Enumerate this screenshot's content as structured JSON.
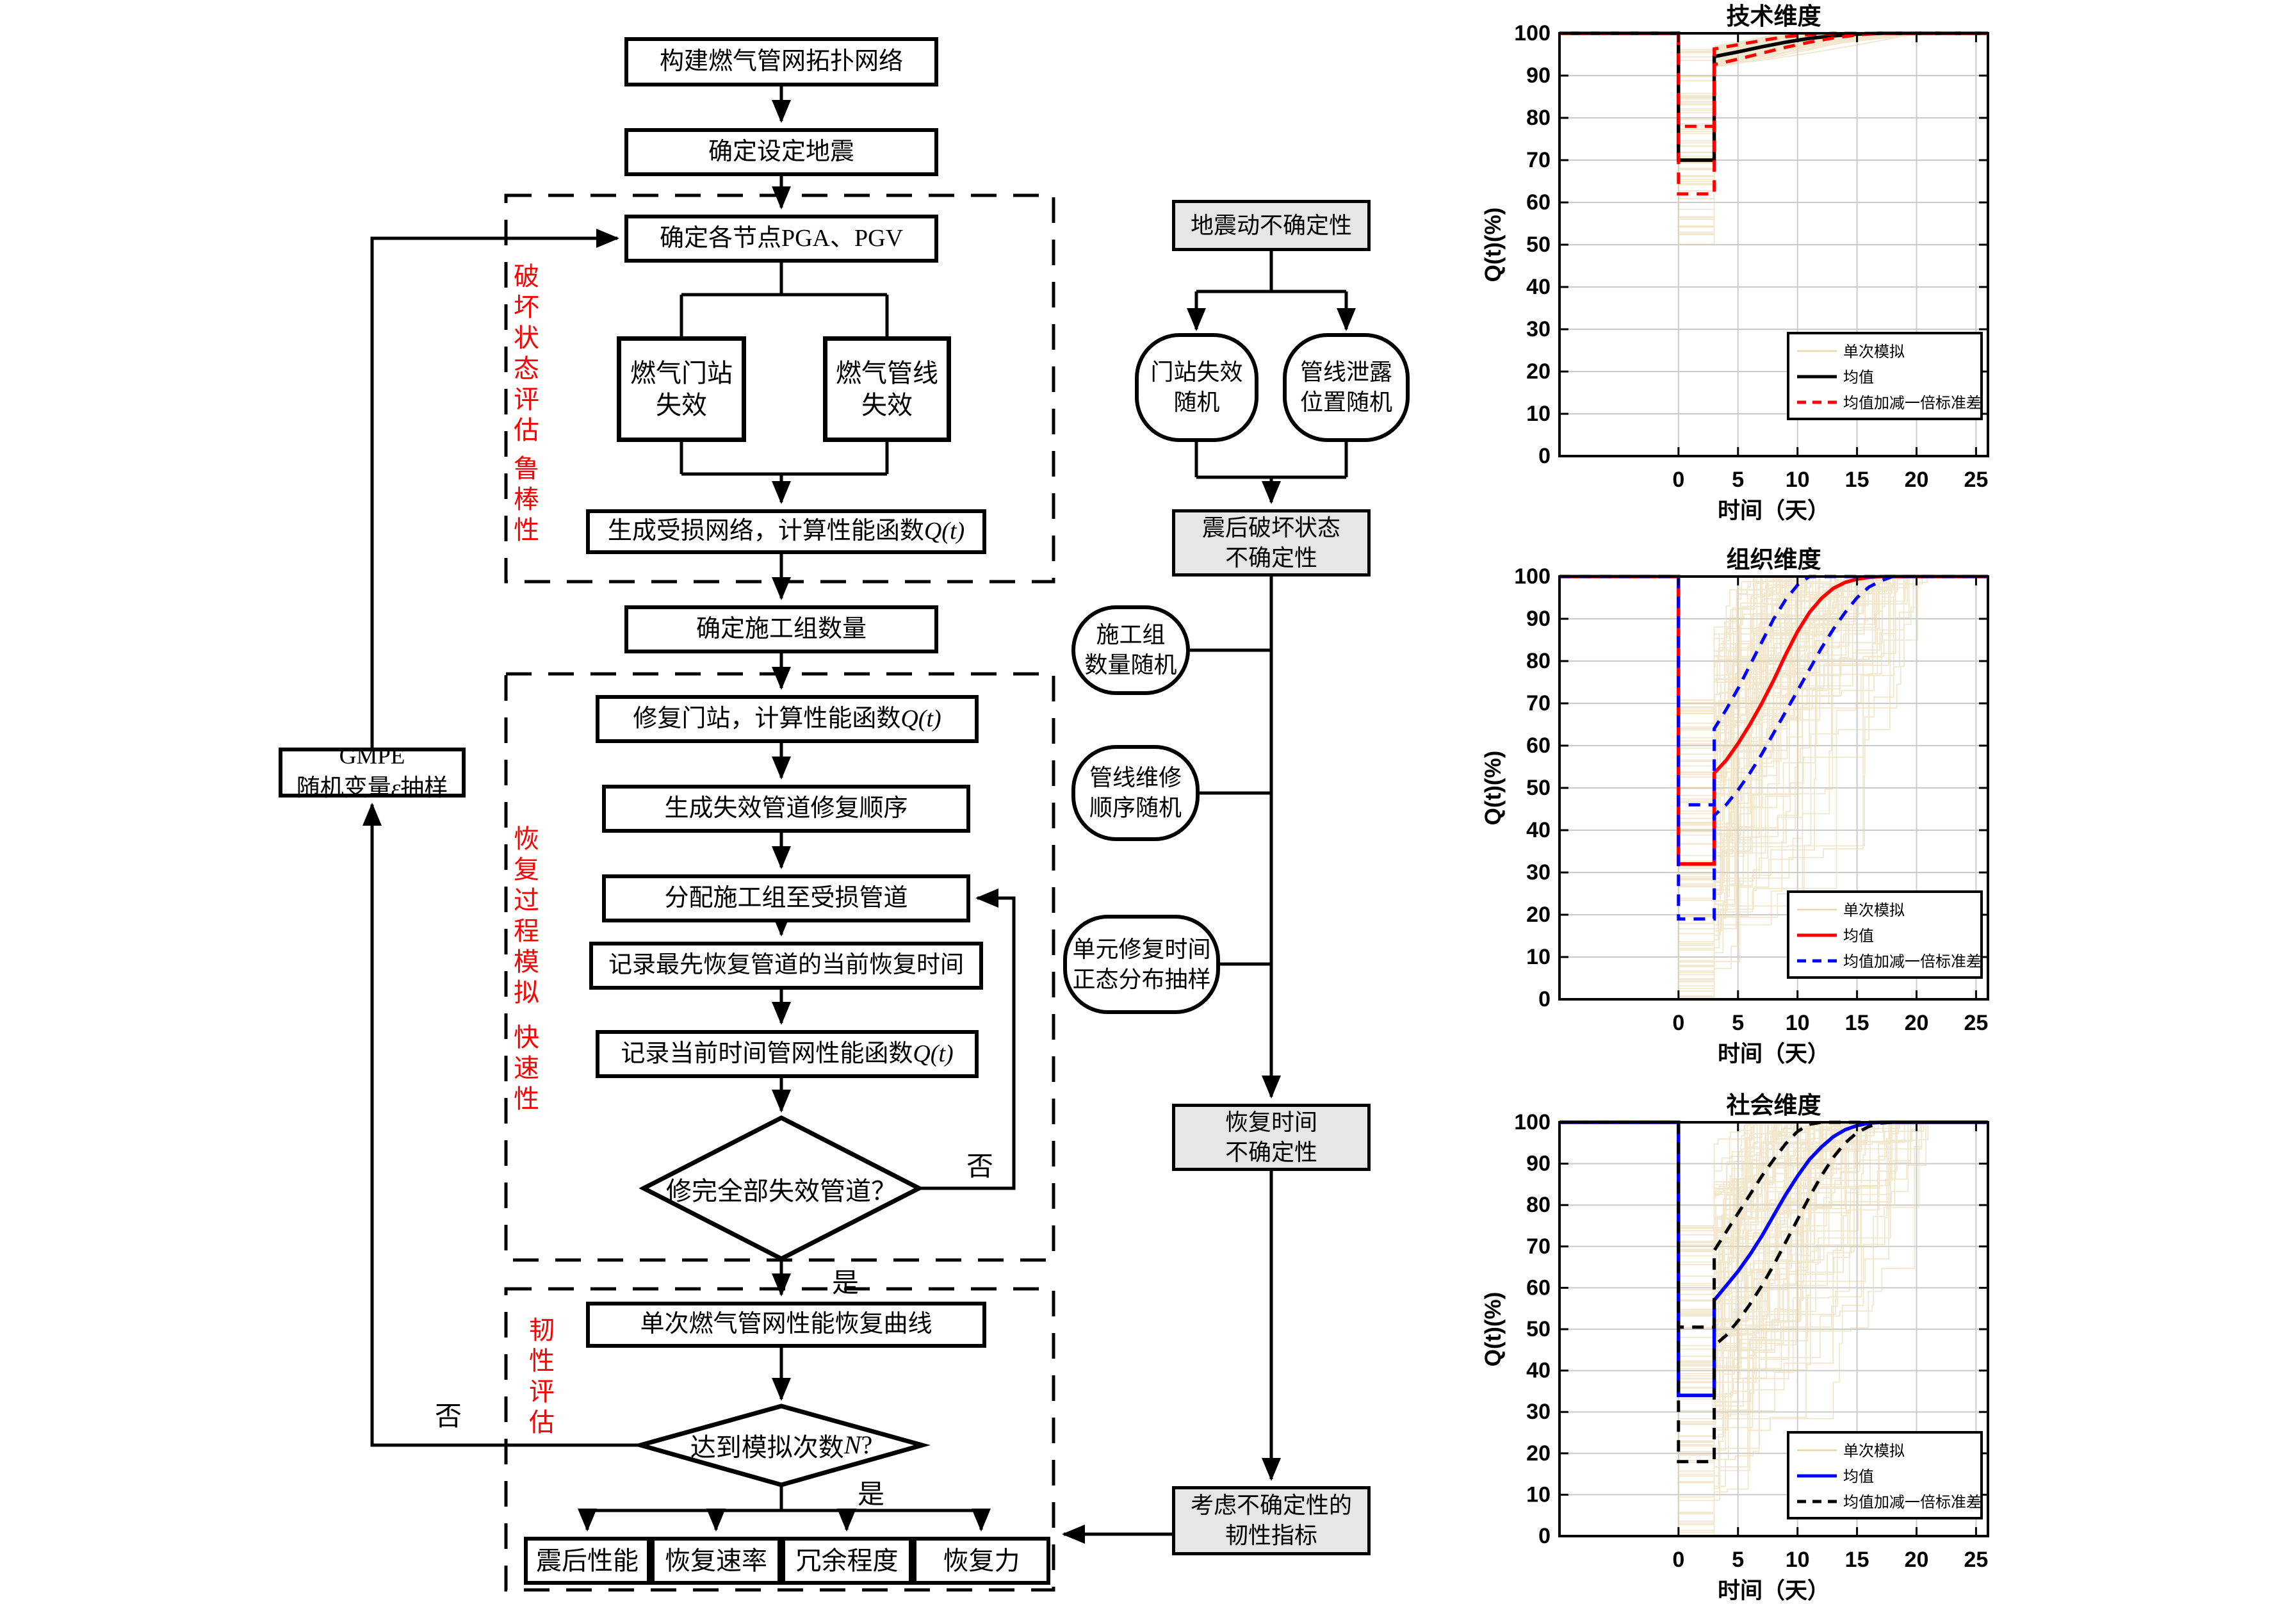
{
  "flowchart": {
    "boxes": {
      "topology": "构建燃气管网拓扑网络",
      "earthquake": "确定设定地震",
      "pga": "确定各节点PGA、PGV",
      "gate_fail": "燃气门站\n失效",
      "pipe_fail": "燃气管线\n失效",
      "damaged_network": {
        "text": "生成受损网络，计算性能函数",
        "formula": "Q(t)"
      },
      "crew_count": "确定施工组数量",
      "repair_gate": {
        "text": "修复门站，计算性能函数",
        "formula": "Q(t)"
      },
      "repair_order": "生成失效管道修复顺序",
      "assign_crew": "分配施工组至受损管道",
      "record_time": "记录最先恢复管道的当前恢复时间",
      "record_q": {
        "text": "记录当前时间管网性能函数",
        "formula": "Q(t)"
      },
      "recovery_curve": "单次燃气管网性能恢复曲线",
      "gmpe": {
        "line1": "GMPE",
        "text": "随机变量",
        "formula": "ε",
        "suffix": "抽样"
      },
      "results": [
        "震后性能",
        "恢复速率",
        "冗余程度",
        "恢复力"
      ]
    },
    "diamonds": {
      "all_repaired": "修完全部失效管道？",
      "reach_n": {
        "text": "达到模拟次数",
        "formula": "N",
        "suffix": "?"
      }
    },
    "edge_labels": {
      "no1": "否",
      "yes1": "是",
      "yes2": "是",
      "no2": "否"
    },
    "side_labels": {
      "damage": "破坏状态评估",
      "robustness": "鲁棒性",
      "recovery": "恢复过程模拟",
      "rapidity": "快速性",
      "resilience": "韧性评估"
    },
    "uncertainty": {
      "ground_motion": "地震动不确定性",
      "gate_random": "门站失效随机",
      "leak_random": "管线泄露位置随机",
      "post_damage": "震后破坏状态\n不确定性",
      "crew_random": "施工组\n数量随机",
      "order_random": "管线维修\n顺序随机",
      "time_random": "单元修复时间\n正态分布抽样",
      "recovery_time": "恢复时间\n不确定性",
      "resilience_index": "考虑不确定性的\n韧性指标"
    },
    "accent_color": "#FF0000"
  },
  "chart_data": [
    {
      "type": "line",
      "id": "technical",
      "title": "技术维度",
      "xlabel": "时间（天）",
      "ylabel": "Q(t)(%)",
      "xlim": [
        -10,
        26
      ],
      "ylim": [
        0,
        100
      ],
      "x_ticks": [
        0,
        5,
        10,
        15,
        20,
        25
      ],
      "y_ticks": [
        0,
        10,
        20,
        30,
        40,
        50,
        60,
        70,
        80,
        90,
        100
      ],
      "grid": true,
      "legend_position": "lower-right",
      "legend": [
        "单次模拟",
        "均值",
        "均值加减一倍标准差"
      ],
      "colors": {
        "sim": "#E9D5A5",
        "mean": "#000000",
        "band": "#FF0000"
      },
      "mean": [
        [
          -10,
          100
        ],
        [
          0,
          100
        ],
        [
          0,
          70
        ],
        [
          3,
          70
        ],
        [
          3,
          94.5
        ],
        [
          5,
          95.6
        ],
        [
          7,
          96.8
        ],
        [
          9,
          97.9
        ],
        [
          11,
          98.8
        ],
        [
          13,
          99.4
        ],
        [
          15,
          99.8
        ],
        [
          17,
          100
        ],
        [
          26,
          100
        ]
      ],
      "upper": [
        [
          -10,
          100
        ],
        [
          0,
          100
        ],
        [
          0,
          78
        ],
        [
          3,
          78
        ],
        [
          3,
          96.3
        ],
        [
          5,
          97.3
        ],
        [
          7,
          98.3
        ],
        [
          9,
          99.2
        ],
        [
          11,
          99.7
        ],
        [
          13,
          100
        ],
        [
          26,
          100
        ]
      ],
      "lower": [
        [
          -10,
          100
        ],
        [
          0,
          100
        ],
        [
          0,
          62
        ],
        [
          3,
          62
        ],
        [
          3,
          92.6
        ],
        [
          5,
          93.9
        ],
        [
          7,
          95.3
        ],
        [
          9,
          96.7
        ],
        [
          11,
          97.9
        ],
        [
          13,
          98.9
        ],
        [
          15,
          99.6
        ],
        [
          17,
          100
        ],
        [
          26,
          100
        ]
      ],
      "sims": {
        "count": 70,
        "seed": 11,
        "mode": "jump",
        "drop": [
          50,
          97
        ],
        "jump": [
          92,
          97
        ],
        "recover": [
          8,
          21
        ]
      }
    },
    {
      "type": "line",
      "id": "organizational",
      "title": "组织维度",
      "xlabel": "时间（天）",
      "ylabel": "Q(t)(%)",
      "xlim": [
        -10,
        26
      ],
      "ylim": [
        0,
        100
      ],
      "x_ticks": [
        0,
        5,
        10,
        15,
        20,
        25
      ],
      "y_ticks": [
        0,
        10,
        20,
        30,
        40,
        50,
        60,
        70,
        80,
        90,
        100
      ],
      "grid": true,
      "legend_position": "lower-right",
      "legend": [
        "单次模拟",
        "均值",
        "均值加减一倍标准差"
      ],
      "colors": {
        "sim": "#E9D5A5",
        "mean": "#FF0000",
        "band": "#0000FF"
      },
      "mean": [
        [
          -10,
          100
        ],
        [
          0,
          100
        ],
        [
          0,
          32
        ],
        [
          3,
          32
        ],
        [
          3,
          53.5
        ],
        [
          4,
          56.5
        ],
        [
          5,
          60.5
        ],
        [
          6,
          65
        ],
        [
          7,
          70
        ],
        [
          8,
          75.5
        ],
        [
          9,
          81.5
        ],
        [
          10,
          87
        ],
        [
          11,
          91.5
        ],
        [
          12,
          94.8
        ],
        [
          13,
          97.2
        ],
        [
          14,
          98.6
        ],
        [
          15,
          99.4
        ],
        [
          16,
          99.8
        ],
        [
          17,
          100
        ],
        [
          26,
          100
        ]
      ],
      "upper": [
        [
          -10,
          100
        ],
        [
          0,
          100
        ],
        [
          0,
          46
        ],
        [
          3,
          46
        ],
        [
          3,
          64
        ],
        [
          4,
          68.5
        ],
        [
          5,
          73.5
        ],
        [
          6,
          79
        ],
        [
          7,
          84.5
        ],
        [
          8,
          90
        ],
        [
          9,
          94.5
        ],
        [
          10,
          98
        ],
        [
          11,
          100
        ],
        [
          26,
          100
        ]
      ],
      "lower": [
        [
          -10,
          100
        ],
        [
          0,
          100
        ],
        [
          0,
          19
        ],
        [
          3,
          19
        ],
        [
          3,
          43.5
        ],
        [
          4,
          46
        ],
        [
          5,
          49.5
        ],
        [
          6,
          53.5
        ],
        [
          7,
          58
        ],
        [
          8,
          63
        ],
        [
          9,
          68
        ],
        [
          10,
          73
        ],
        [
          11,
          78
        ],
        [
          12,
          83
        ],
        [
          13,
          87.5
        ],
        [
          14,
          91.5
        ],
        [
          15,
          95
        ],
        [
          16,
          97.5
        ],
        [
          17,
          99
        ],
        [
          18,
          100
        ],
        [
          26,
          100
        ]
      ],
      "sims": {
        "count": 95,
        "seed": 23,
        "mode": "ramp",
        "drop": [
          0,
          72
        ],
        "jump": [
          4,
          20
        ],
        "recover": [
          6,
          21
        ]
      }
    },
    {
      "type": "line",
      "id": "social",
      "title": "社会维度",
      "xlabel": "时间（天）",
      "ylabel": "Q(t)(%)",
      "xlim": [
        -10,
        26
      ],
      "ylim": [
        0,
        100
      ],
      "x_ticks": [
        0,
        5,
        10,
        15,
        20,
        25
      ],
      "y_ticks": [
        0,
        10,
        20,
        30,
        40,
        50,
        60,
        70,
        80,
        90,
        100
      ],
      "grid": true,
      "legend_position": "lower-right",
      "legend": [
        "单次模拟",
        "均值",
        "均值加减一倍标准差"
      ],
      "colors": {
        "sim": "#E9D5A5",
        "mean": "#0000FF",
        "band": "#000000"
      },
      "mean": [
        [
          -10,
          100
        ],
        [
          0,
          100
        ],
        [
          0,
          34
        ],
        [
          3,
          34
        ],
        [
          3,
          57
        ],
        [
          4,
          60.5
        ],
        [
          5,
          64
        ],
        [
          6,
          68
        ],
        [
          7,
          72.5
        ],
        [
          8,
          77.5
        ],
        [
          9,
          82.5
        ],
        [
          10,
          87
        ],
        [
          11,
          91
        ],
        [
          12,
          94
        ],
        [
          13,
          96.5
        ],
        [
          14,
          98.2
        ],
        [
          15,
          99.2
        ],
        [
          16,
          99.8
        ],
        [
          17,
          100
        ],
        [
          26,
          100
        ]
      ],
      "upper": [
        [
          -10,
          100
        ],
        [
          0,
          100
        ],
        [
          0,
          50.5
        ],
        [
          3,
          50.5
        ],
        [
          3,
          69
        ],
        [
          4,
          73.5
        ],
        [
          5,
          78
        ],
        [
          6,
          82.5
        ],
        [
          7,
          87
        ],
        [
          8,
          91
        ],
        [
          9,
          94.8
        ],
        [
          10,
          97.8
        ],
        [
          11,
          99.5
        ],
        [
          12,
          100
        ],
        [
          26,
          100
        ]
      ],
      "lower": [
        [
          -10,
          100
        ],
        [
          0,
          100
        ],
        [
          0,
          18
        ],
        [
          3,
          18
        ],
        [
          3,
          46
        ],
        [
          4,
          48.5
        ],
        [
          5,
          52
        ],
        [
          6,
          56
        ],
        [
          7,
          60.5
        ],
        [
          8,
          65.5
        ],
        [
          9,
          71
        ],
        [
          10,
          76.5
        ],
        [
          11,
          82
        ],
        [
          12,
          87
        ],
        [
          13,
          91.5
        ],
        [
          14,
          95
        ],
        [
          15,
          97.5
        ],
        [
          16,
          99
        ],
        [
          17,
          99.8
        ],
        [
          18,
          100
        ],
        [
          26,
          100
        ]
      ],
      "sims": {
        "count": 95,
        "seed": 37,
        "mode": "ramp",
        "drop": [
          0,
          75
        ],
        "jump": [
          4,
          20
        ],
        "recover": [
          6,
          21
        ]
      }
    }
  ]
}
